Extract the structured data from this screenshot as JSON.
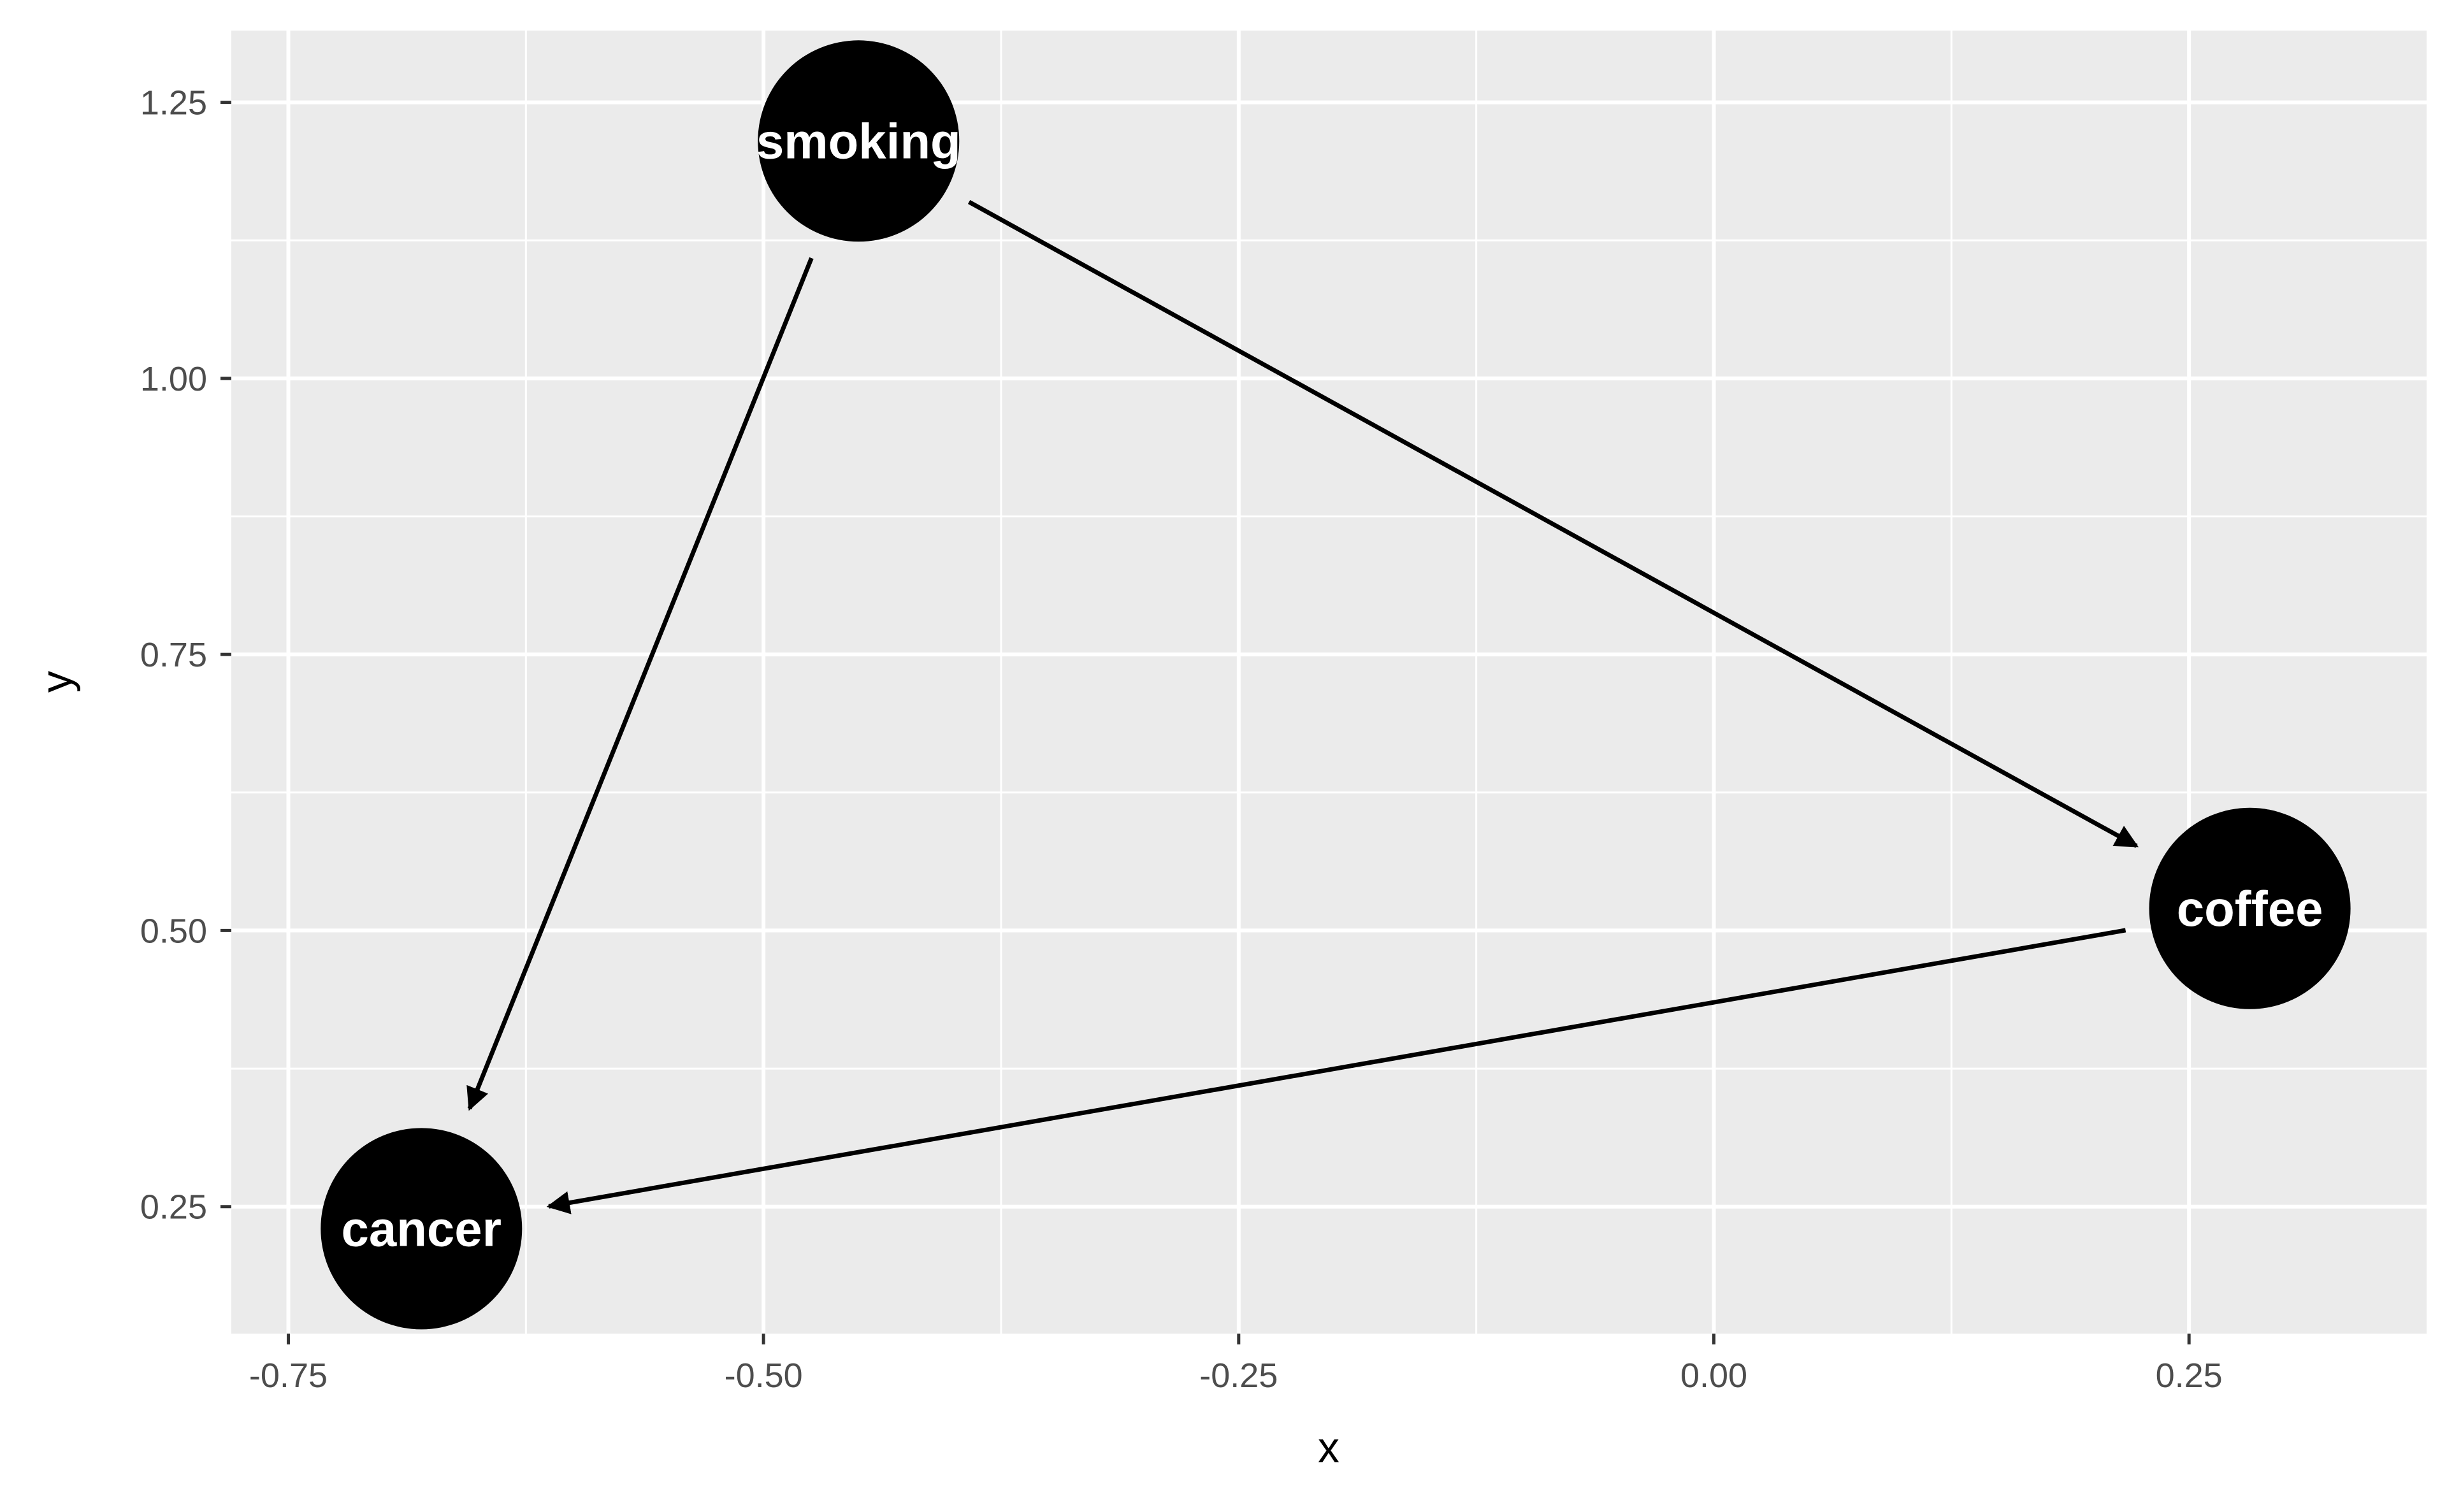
{
  "chart_data": {
    "type": "scatter",
    "subtype": "dag",
    "xlabel": "x",
    "ylabel": "y",
    "xlim": [
      -0.78,
      0.375
    ],
    "ylim": [
      0.135,
      1.315
    ],
    "x_ticks": [
      -0.75,
      -0.5,
      -0.25,
      0.0,
      0.25
    ],
    "x_tick_labels": [
      "-0.75",
      "-0.50",
      "-0.25",
      "0.00",
      "0.25"
    ],
    "y_ticks": [
      0.25,
      0.5,
      0.75,
      1.0,
      1.25
    ],
    "y_tick_labels": [
      "0.25",
      "0.50",
      "0.75",
      "1.00",
      "1.25"
    ],
    "grid": true,
    "nodes": [
      {
        "name": "smoking",
        "x": -0.45,
        "y": 1.215
      },
      {
        "name": "coffee",
        "x": 0.282,
        "y": 0.52
      },
      {
        "name": "cancer",
        "x": -0.68,
        "y": 0.23
      }
    ],
    "edges": [
      {
        "from": "smoking",
        "to": "cancer"
      },
      {
        "from": "smoking",
        "to": "coffee"
      },
      {
        "from": "coffee",
        "to": "cancer"
      }
    ],
    "colors": {
      "panel_background": "#ebebeb",
      "grid": "#ffffff",
      "node_fill": "#000000",
      "node_text": "#ffffff",
      "edge": "#000000"
    }
  }
}
